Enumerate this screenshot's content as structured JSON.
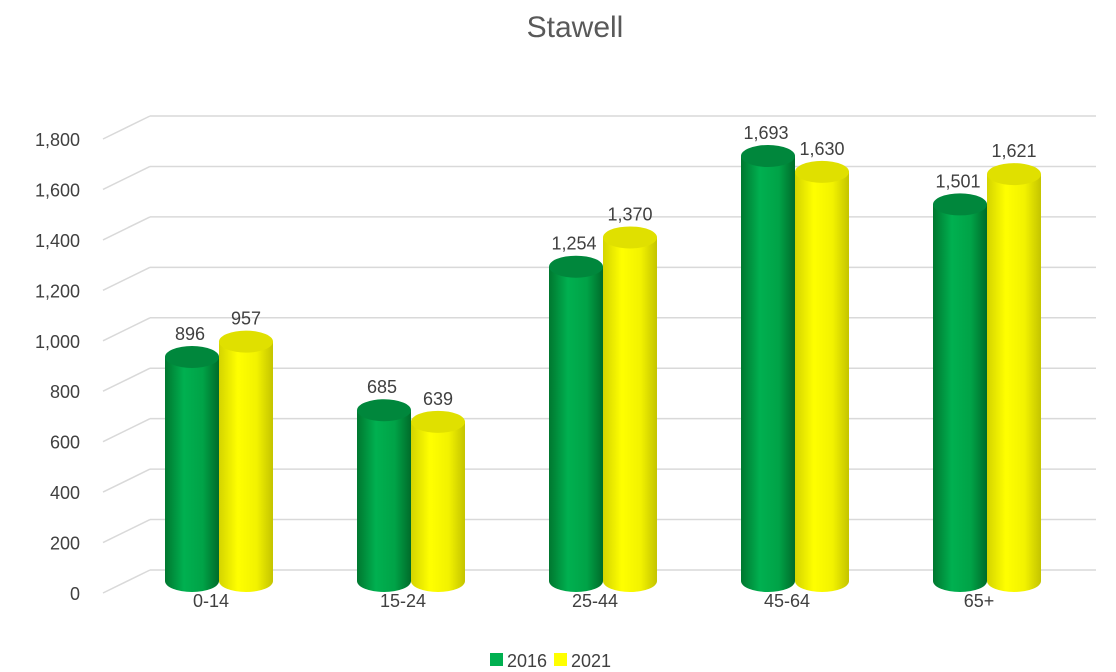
{
  "chart_data": {
    "type": "bar",
    "title": "Stawell",
    "categories": [
      "0-14",
      "15-24",
      "25-44",
      "45-64",
      "65+"
    ],
    "series": [
      {
        "name": "2016",
        "values": [
          896,
          685,
          1254,
          1693,
          1501
        ],
        "labels": [
          "896",
          "685",
          "1,254",
          "1,693",
          "1,501"
        ],
        "color": "#00b050"
      },
      {
        "name": "2021",
        "values": [
          957,
          639,
          1370,
          1630,
          1621
        ],
        "labels": [
          "957",
          "639",
          "1,370",
          "1,630",
          "1,621"
        ],
        "color": "#ffff00"
      }
    ],
    "ylim": [
      0,
      1800
    ],
    "yticks": [
      0,
      200,
      400,
      600,
      800,
      1000,
      1200,
      1400,
      1600,
      1800
    ],
    "ytick_labels": [
      "0",
      "200",
      "400",
      "600",
      "800",
      "1,000",
      "1,200",
      "1,400",
      "1,600",
      "1,800"
    ],
    "xlabel": "",
    "ylabel": "",
    "grid": true,
    "legend_position": "bottom",
    "style": "3d-cylinder"
  }
}
